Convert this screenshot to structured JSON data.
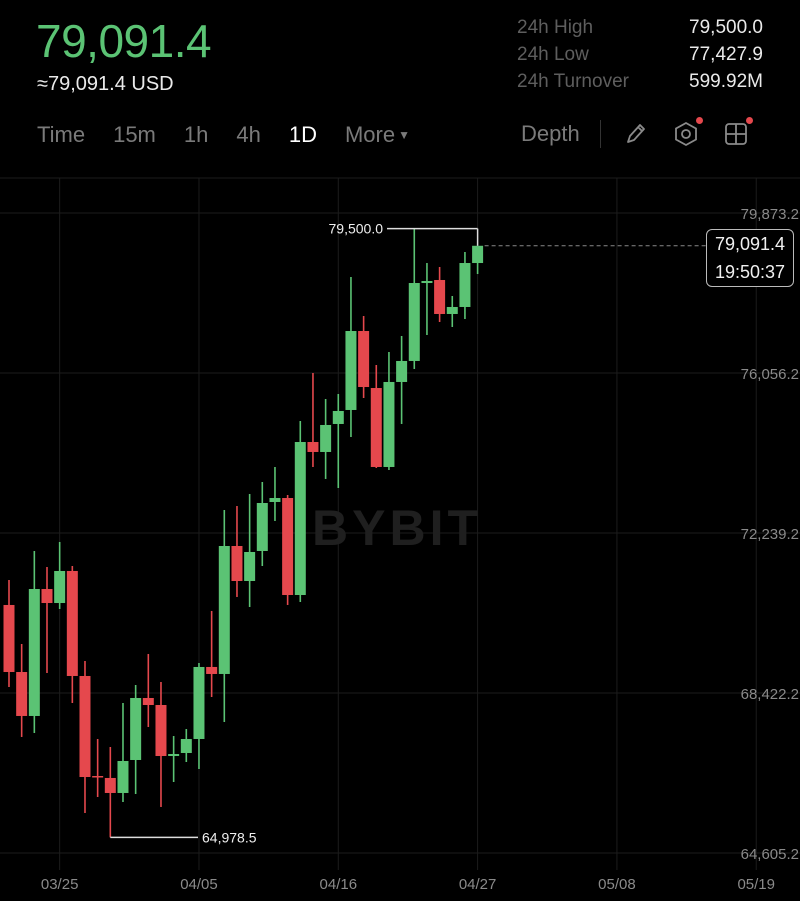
{
  "header": {
    "last_price": "79,091.4",
    "usd_price": "≈79,091.4 USD",
    "stats": [
      {
        "label": "24h High",
        "value": "79,500.0"
      },
      {
        "label": "24h Low",
        "value": "77,427.9"
      },
      {
        "label": "24h Turnover",
        "value": "599.92M"
      }
    ]
  },
  "toolbar": {
    "intervals": [
      "Time",
      "15m",
      "1h",
      "4h",
      "1D"
    ],
    "active_interval": "1D",
    "more_label": "More",
    "depth_label": "Depth",
    "icons": [
      "pencil-icon",
      "hexagon-settings-icon",
      "grid-layout-icon"
    ]
  },
  "colors": {
    "up": "#5bc374",
    "down": "#e5484d",
    "background": "#000000",
    "accent_dot": "#e5484d"
  },
  "watermark": "BYBIT",
  "current_price_box": {
    "price": "79,091.4",
    "countdown": "19:50:37"
  },
  "chart_data": {
    "type": "candlestick",
    "interval": "1D",
    "start_date": "03/21",
    "x_tick_labels": [
      "03/25",
      "04/05",
      "04/16",
      "04/27",
      "05/08",
      "05/19"
    ],
    "y_tick_labels": [
      "79,873.2",
      "76,056.2",
      "72,239.2",
      "68,422.2",
      "64,605.2"
    ],
    "y_ticks": [
      79873.2,
      76056.2,
      72239.2,
      68422.2,
      64605.2
    ],
    "grid": true,
    "high_marker": {
      "label": "79,500.0",
      "value": 79500.0
    },
    "low_marker": {
      "label": "64,978.5",
      "value": 64978.5
    },
    "current_price": 79091.4,
    "candles": [
      {
        "date": "03/21",
        "o": 70522,
        "h": 71118,
        "l": 68565,
        "c": 68923
      },
      {
        "date": "03/22",
        "o": 68923,
        "h": 69591,
        "l": 67373,
        "c": 67874
      },
      {
        "date": "03/23",
        "o": 67874,
        "h": 71810,
        "l": 67468,
        "c": 70903
      },
      {
        "date": "03/24",
        "o": 70903,
        "h": 71428,
        "l": 68899,
        "c": 70569
      },
      {
        "date": "03/25",
        "o": 70569,
        "h": 72025,
        "l": 70426,
        "c": 71333
      },
      {
        "date": "03/26",
        "o": 71333,
        "h": 71452,
        "l": 68184,
        "c": 68828
      },
      {
        "date": "03/27",
        "o": 68828,
        "h": 69186,
        "l": 65560,
        "c": 66418
      },
      {
        "date": "03/28",
        "o": 66442,
        "h": 67325,
        "l": 65941,
        "c": 66418
      },
      {
        "date": "03/29",
        "o": 66395,
        "h": 67134,
        "l": 64978.5,
        "c": 66037
      },
      {
        "date": "03/30",
        "o": 66037,
        "h": 68184,
        "l": 65822,
        "c": 66800
      },
      {
        "date": "03/31",
        "o": 66824,
        "h": 68613,
        "l": 66013,
        "c": 68303
      },
      {
        "date": "04/01",
        "o": 68303,
        "h": 69353,
        "l": 67611,
        "c": 68136
      },
      {
        "date": "04/02",
        "o": 68136,
        "h": 68685,
        "l": 65703,
        "c": 66919
      },
      {
        "date": "04/03",
        "o": 66919,
        "h": 67396,
        "l": 66299,
        "c": 66967
      },
      {
        "date": "04/04",
        "o": 66991,
        "h": 67563,
        "l": 66776,
        "c": 67325
      },
      {
        "date": "04/05",
        "o": 67325,
        "h": 69138,
        "l": 66609,
        "c": 69043
      },
      {
        "date": "04/06",
        "o": 69043,
        "h": 70379,
        "l": 68327,
        "c": 68876
      },
      {
        "date": "04/07",
        "o": 68876,
        "h": 72788,
        "l": 67731,
        "c": 71929
      },
      {
        "date": "04/08",
        "o": 71929,
        "h": 72883,
        "l": 70713,
        "c": 71094
      },
      {
        "date": "04/09",
        "o": 71094,
        "h": 73170,
        "l": 70474,
        "c": 71786
      },
      {
        "date": "04/10",
        "o": 71810,
        "h": 73456,
        "l": 71452,
        "c": 72955
      },
      {
        "date": "04/11",
        "o": 72979,
        "h": 73814,
        "l": 72526,
        "c": 73074
      },
      {
        "date": "04/12",
        "o": 73074,
        "h": 73146,
        "l": 70522,
        "c": 70760
      },
      {
        "date": "04/13",
        "o": 70760,
        "h": 74911,
        "l": 70593,
        "c": 74410
      },
      {
        "date": "04/14",
        "o": 74410,
        "h": 76056,
        "l": 73814,
        "c": 74172
      },
      {
        "date": "04/15",
        "o": 74172,
        "h": 75436,
        "l": 73528,
        "c": 74816
      },
      {
        "date": "04/16",
        "o": 74840,
        "h": 75555,
        "l": 73313,
        "c": 75150
      },
      {
        "date": "04/17",
        "o": 75174,
        "h": 78346,
        "l": 74529,
        "c": 77058
      },
      {
        "date": "04/18",
        "o": 77058,
        "h": 77416,
        "l": 75460,
        "c": 75722
      },
      {
        "date": "04/19",
        "o": 75698,
        "h": 76247,
        "l": 73790,
        "c": 73814
      },
      {
        "date": "04/20",
        "o": 73814,
        "h": 76557,
        "l": 73742,
        "c": 75842
      },
      {
        "date": "04/21",
        "o": 75842,
        "h": 76939,
        "l": 74840,
        "c": 76343
      },
      {
        "date": "04/22",
        "o": 76343,
        "h": 79500,
        "l": 76152,
        "c": 78203
      },
      {
        "date": "04/23",
        "o": 78203,
        "h": 78680,
        "l": 76963,
        "c": 78251
      },
      {
        "date": "04/24",
        "o": 78275,
        "h": 78585,
        "l": 77273,
        "c": 77464
      },
      {
        "date": "04/25",
        "o": 77464,
        "h": 77893,
        "l": 77154,
        "c": 77631
      },
      {
        "date": "04/26",
        "o": 77631,
        "h": 78943,
        "l": 77344,
        "c": 78680
      },
      {
        "date": "04/27",
        "o": 78680,
        "h": 79091.4,
        "l": 78418,
        "c": 79091.4
      }
    ]
  }
}
